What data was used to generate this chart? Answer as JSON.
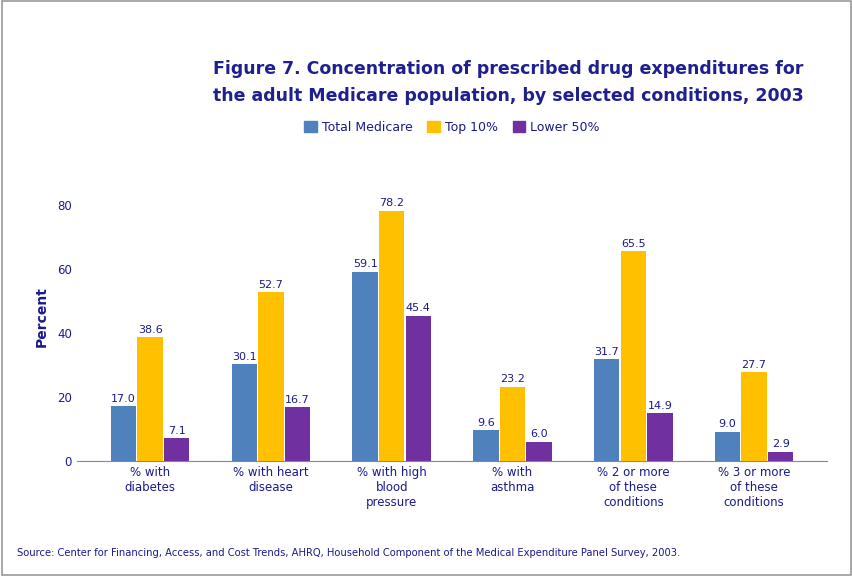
{
  "categories": [
    "% with\ndiabetes",
    "% with heart\ndisease",
    "% with high\nblood\npressure",
    "% with\nasthma",
    "% 2 or more\nof these\nconditions",
    "% 3 or more\nof these\nconditions"
  ],
  "series": {
    "Total Medicare": [
      17.0,
      30.1,
      59.1,
      9.6,
      31.7,
      9.0
    ],
    "Top 10%": [
      38.6,
      52.7,
      78.2,
      23.2,
      65.5,
      27.7
    ],
    "Lower 50%": [
      7.1,
      16.7,
      45.4,
      6.0,
      14.9,
      2.9
    ]
  },
  "colors": {
    "Total Medicare": "#4f81bd",
    "Top 10%": "#ffc000",
    "Lower 50%": "#7030a0"
  },
  "ylabel": "Percent",
  "ylim": [
    0,
    90
  ],
  "yticks": [
    0,
    20,
    40,
    60,
    80
  ],
  "bar_width": 0.22,
  "series_names": [
    "Total Medicare",
    "Top 10%",
    "Lower 50%"
  ],
  "value_fontsize": 8.0,
  "axis_label_fontsize": 10,
  "tick_label_fontsize": 8.5,
  "legend_fontsize": 9,
  "title_text1": "Figure 7. Concentration of prescribed drug expenditures for",
  "title_text2": "the adult Medicare population, by selected conditions, 2003",
  "source_text": "Source: Center for Financing, Access, and Cost Trends, AHRQ, Household Component of the Medical Expenditure Panel Survey, 2003.",
  "bg_color": "#ffffff",
  "dark_blue": "#1f1f8f",
  "text_blue": "#1a1a8c",
  "header_bg": "#ffffff",
  "separator_color": "#00008b",
  "outer_border_color": "#aaaacc"
}
